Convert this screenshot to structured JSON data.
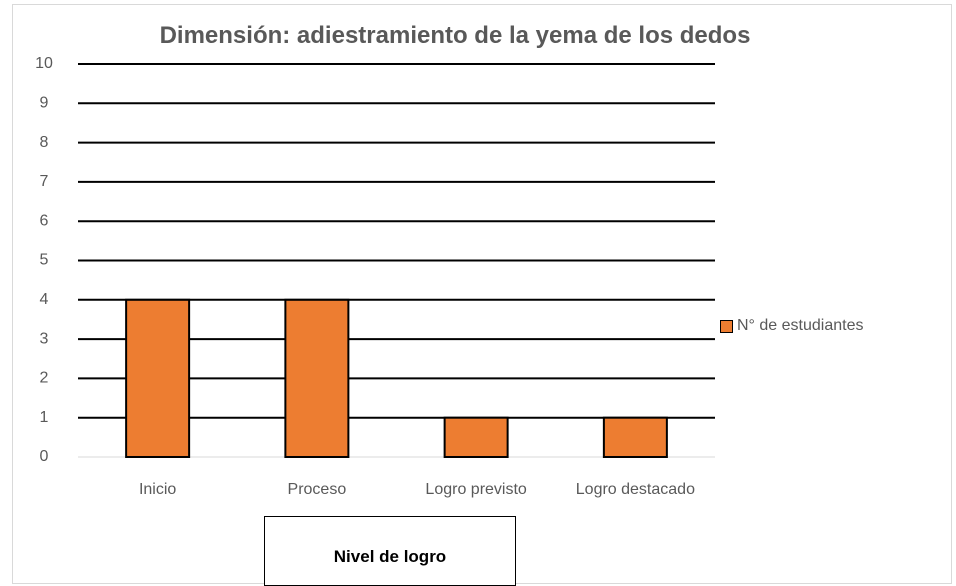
{
  "chart_data": {
    "type": "bar",
    "title": "Dimensión: adiestramiento de la yema de los dedos",
    "categories": [
      "Inicio",
      "Proceso",
      "Logro previsto",
      "Logro destacado"
    ],
    "series": [
      {
        "name": "N° de estudiantes",
        "color": "#ed7d31",
        "values": [
          4,
          4,
          1,
          1
        ]
      }
    ],
    "x_label": "Nivel de logro",
    "ylim": [
      0,
      10
    ],
    "yticks": [
      0,
      1,
      2,
      3,
      4,
      5,
      6,
      7,
      8,
      9,
      10
    ],
    "grid": true,
    "legend": "right"
  }
}
